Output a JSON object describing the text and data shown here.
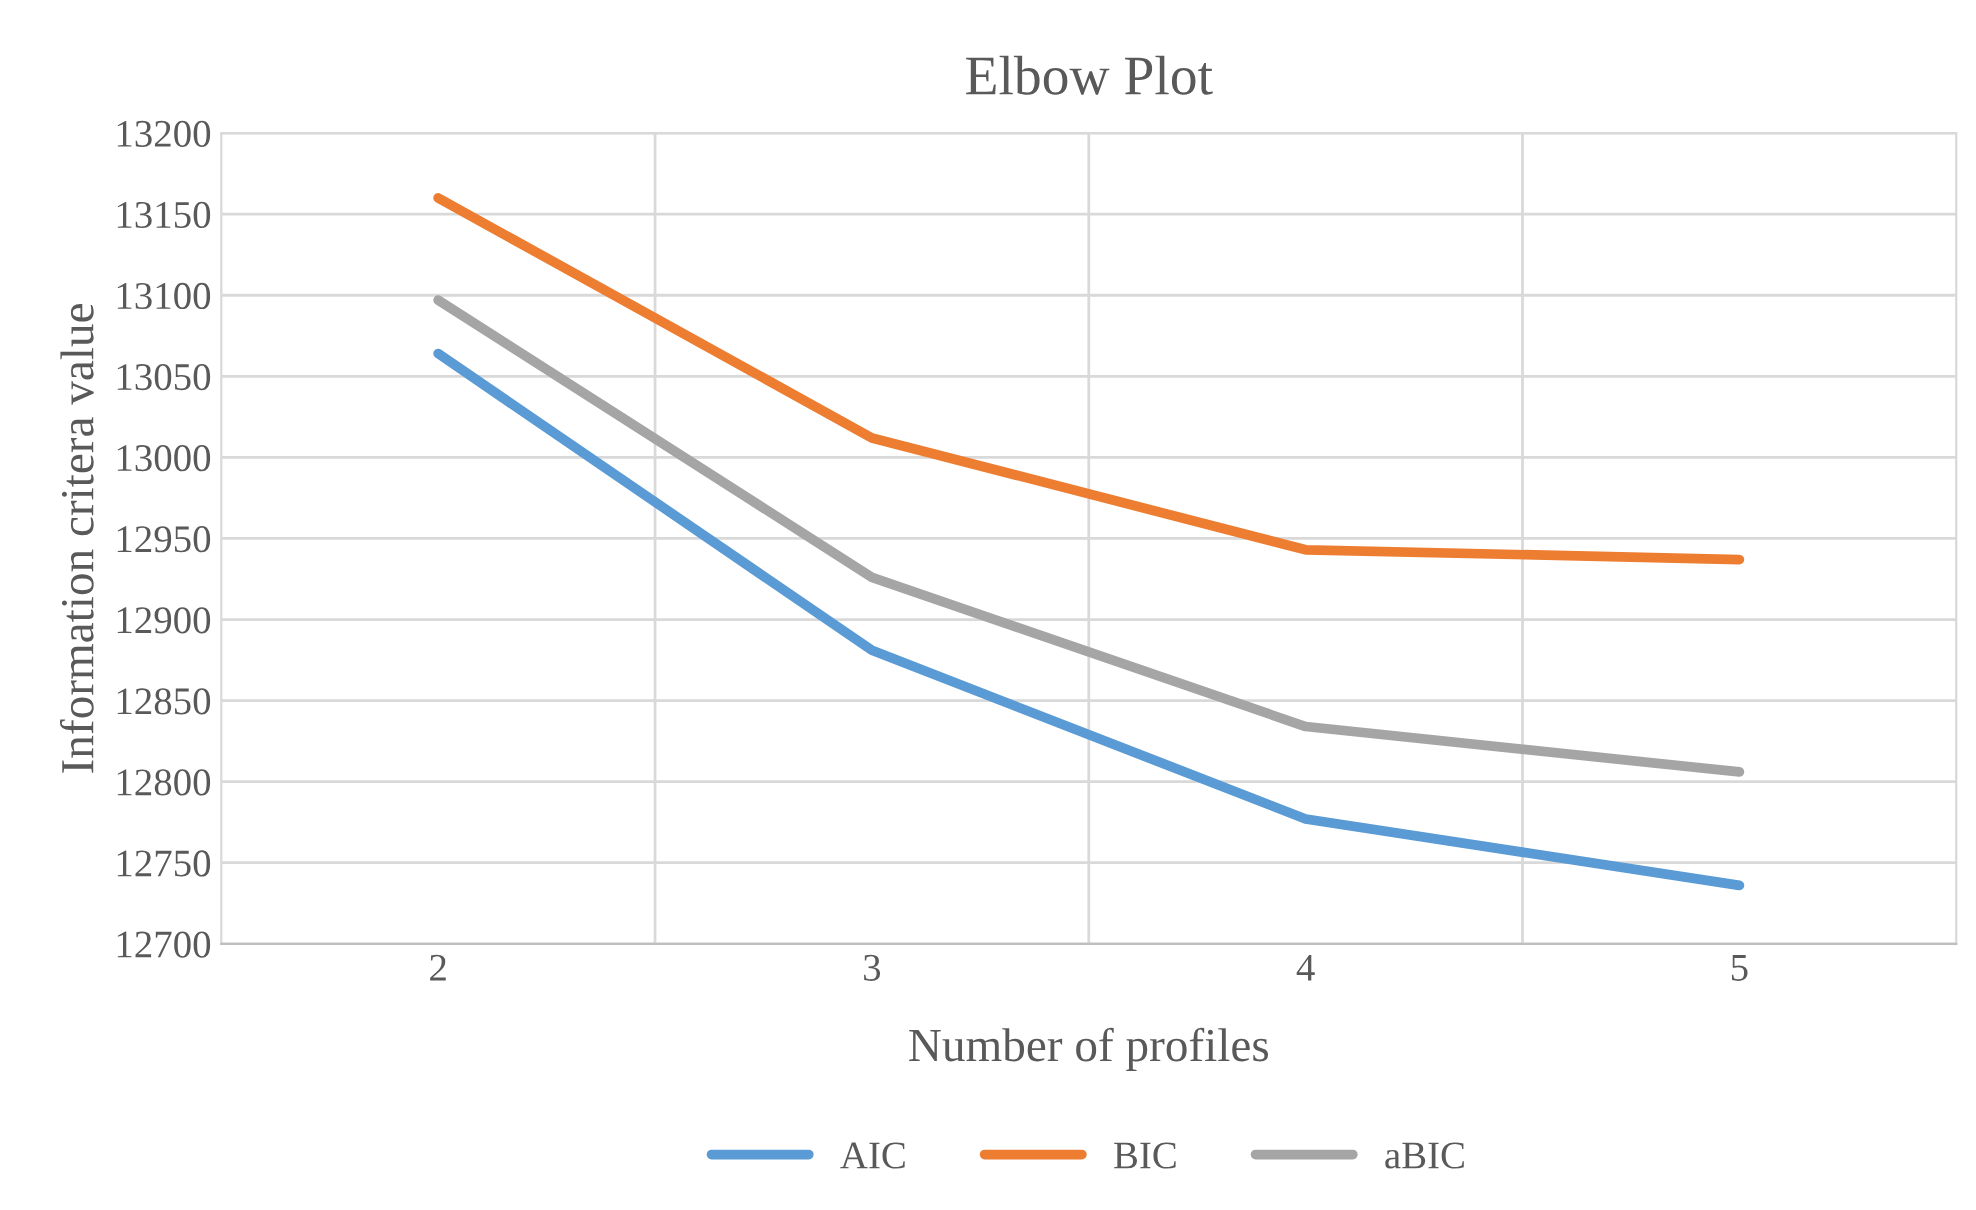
{
  "chart_data": {
    "type": "line",
    "title": "Elbow Plot",
    "xlabel": "Number of profiles",
    "ylabel": "Information critera value",
    "categories": [
      "2",
      "3",
      "4",
      "5"
    ],
    "series": [
      {
        "name": "AIC",
        "color": "#5b9bd5",
        "values": [
          13064,
          12881,
          12777,
          12736
        ]
      },
      {
        "name": "BIC",
        "color": "#ed7d31",
        "values": [
          13160,
          13012,
          12943,
          12937
        ]
      },
      {
        "name": "aBIC",
        "color": "#a5a5a5",
        "values": [
          13097,
          12926,
          12834,
          12806
        ]
      }
    ],
    "ylim": [
      12700,
      13200
    ],
    "yticks": [
      12700,
      12750,
      12800,
      12850,
      12900,
      12950,
      13000,
      13050,
      13100,
      13150,
      13200
    ],
    "grid": true,
    "legend": "bottom",
    "marker": "none",
    "line_style": "solid"
  }
}
